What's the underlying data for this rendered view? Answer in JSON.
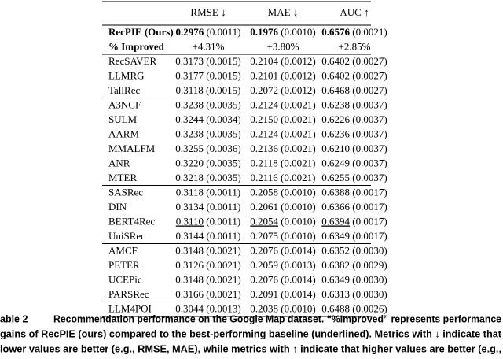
{
  "table": {
    "header": [
      "RMSE ↓",
      "MAE ↓",
      "AUC ↑"
    ],
    "groups": [
      [
        {
          "name": "RecPIE (Ours)",
          "cells": [
            {
              "value": "0.2976",
              "std": "(0.0011)"
            },
            {
              "value": "0.1976",
              "std": "(0.0010)"
            },
            {
              "value": "0.6576",
              "std": "(0.0021)"
            }
          ]
        },
        {
          "name": "% Improved",
          "cells": [
            {
              "value": "+4.31%"
            },
            {
              "value": "+3.80%"
            },
            {
              "value": "+2.85%"
            }
          ]
        }
      ],
      [
        {
          "name": "RecSAVER",
          "cells": [
            {
              "value": "0.3173",
              "std": "(0.0015)"
            },
            {
              "value": "0.2104",
              "std": "(0.0012)"
            },
            {
              "value": "0.6402",
              "std": "(0.0027)"
            }
          ]
        },
        {
          "name": "LLMRG",
          "cells": [
            {
              "value": "0.3177",
              "std": "(0.0015)"
            },
            {
              "value": "0.2101",
              "std": "(0.0012)"
            },
            {
              "value": "0.6402",
              "std": "(0.0027)"
            }
          ]
        },
        {
          "name": "TallRec",
          "cells": [
            {
              "value": "0.3118",
              "std": "(0.0015)"
            },
            {
              "value": "0.2072",
              "std": "(0.0012)"
            },
            {
              "value": "0.6468",
              "std": "(0.0027)"
            }
          ]
        }
      ],
      [
        {
          "name": "A3NCF",
          "cells": [
            {
              "value": "0.3238",
              "std": "(0.0035)"
            },
            {
              "value": "0.2124",
              "std": "(0.0021)"
            },
            {
              "value": "0.6238",
              "std": "(0.0037)"
            }
          ]
        },
        {
          "name": "SULM",
          "cells": [
            {
              "value": "0.3244",
              "std": "(0.0034)"
            },
            {
              "value": "0.2150",
              "std": "(0.0021)"
            },
            {
              "value": "0.6226",
              "std": "(0.0037)"
            }
          ]
        },
        {
          "name": "AARM",
          "cells": [
            {
              "value": "0.3238",
              "std": "(0.0035)"
            },
            {
              "value": "0.2124",
              "std": "(0.0021)"
            },
            {
              "value": "0.6236",
              "std": "(0.0037)"
            }
          ]
        },
        {
          "name": "MMALFM",
          "cells": [
            {
              "value": "0.3255",
              "std": "(0.0036)"
            },
            {
              "value": "0.2136",
              "std": "(0.0021)"
            },
            {
              "value": "0.6210",
              "std": "(0.0037)"
            }
          ]
        },
        {
          "name": "ANR",
          "cells": [
            {
              "value": "0.3220",
              "std": "(0.0035)"
            },
            {
              "value": "0.2118",
              "std": "(0.0021)"
            },
            {
              "value": "0.6249",
              "std": "(0.0037)"
            }
          ]
        },
        {
          "name": "MTER",
          "cells": [
            {
              "value": "0.3218",
              "std": "(0.0035)"
            },
            {
              "value": "0.2116",
              "std": "(0.0021)"
            },
            {
              "value": "0.6255",
              "std": "(0.0037)"
            }
          ]
        }
      ],
      [
        {
          "name": "SASRec",
          "cells": [
            {
              "value": "0.3118",
              "std": "(0.0011)"
            },
            {
              "value": "0.2058",
              "std": "(0.0010)"
            },
            {
              "value": "0.6388",
              "std": "(0.0017)"
            }
          ]
        },
        {
          "name": "DIN",
          "cells": [
            {
              "value": "0.3134",
              "std": "(0.0011)"
            },
            {
              "value": "0.2061",
              "std": "(0.0010)"
            },
            {
              "value": "0.6366",
              "std": "(0.0017)"
            }
          ]
        },
        {
          "name": "BERT4Rec",
          "cells": [
            {
              "value": "0.3110",
              "std": "(0.0011)"
            },
            {
              "value": "0.2054",
              "std": "(0.0010)"
            },
            {
              "value": "0.6394",
              "std": "(0.0017)"
            }
          ]
        },
        {
          "name": "UniSRec",
          "cells": [
            {
              "value": "0.3144",
              "std": "(0.0011)"
            },
            {
              "value": "0.2075",
              "std": "(0.0010)"
            },
            {
              "value": "0.6349",
              "std": "(0.0017)"
            }
          ]
        }
      ],
      [
        {
          "name": "AMCF",
          "cells": [
            {
              "value": "0.3148",
              "std": "(0.0021)"
            },
            {
              "value": "0.2076",
              "std": "(0.0014)"
            },
            {
              "value": "0.6352",
              "std": "(0.0030)"
            }
          ]
        },
        {
          "name": "PETER",
          "cells": [
            {
              "value": "0.3126",
              "std": "(0.0021)"
            },
            {
              "value": "0.2059",
              "std": "(0.0013)"
            },
            {
              "value": "0.6382",
              "std": "(0.0029)"
            }
          ]
        },
        {
          "name": "UCEPic",
          "cells": [
            {
              "value": "0.3148",
              "std": "(0.0021)"
            },
            {
              "value": "0.2076",
              "std": "(0.0014)"
            },
            {
              "value": "0.6349",
              "std": "(0.0030)"
            }
          ]
        },
        {
          "name": "PARSRec",
          "cells": [
            {
              "value": "0.3166",
              "std": "(0.0021)"
            },
            {
              "value": "0.2091",
              "std": "(0.0014)"
            },
            {
              "value": "0.6313",
              "std": "(0.0030)"
            }
          ]
        }
      ],
      [
        {
          "name": "LLM4POI",
          "cells": [
            {
              "value": "0.3044",
              "std": "(0.0013)"
            },
            {
              "value": "0.2038",
              "std": "(0.0010)"
            },
            {
              "value": "0.6488",
              "std": "(0.0026)"
            }
          ]
        }
      ]
    ]
  },
  "caption": {
    "label": "able 2",
    "lines": [
      "Recommendation performance on the Google Map dataset. “%Improved” represents performance",
      "gains of RecPIE (ours) compared to the best-performing baseline (underlined). Metrics with ↓ indicate that",
      "lower values are better (e.g., RMSE, MAE), while metrics with ↑ indicate that higher values are better (e.g.,"
    ]
  }
}
